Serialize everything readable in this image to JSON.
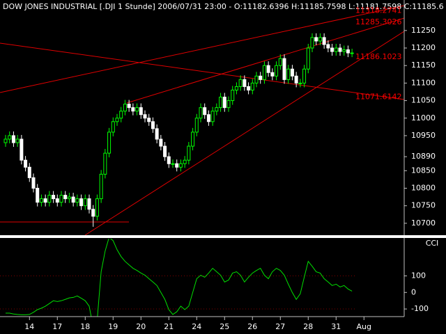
{
  "chart_data": [
    {
      "type": "candlestick",
      "title": "DOW JONES INDUSTRIAL [.DJI  1 Stunde] 2006/07/31 23:00 - O:11182.6396 H:11185.7598 L:11181.7598 C:11185.6",
      "up_color": "#00ff00",
      "down_color": "#ffffff",
      "open": [
        10930,
        10940,
        10950,
        10930,
        10940,
        10880,
        10860,
        10830,
        10800,
        10760,
        10770,
        10760,
        10780,
        10770,
        10760,
        10780,
        10770,
        10775,
        10760,
        10770,
        10750,
        10770,
        10740,
        10720,
        10770,
        10840,
        10900,
        10960,
        10990,
        11000,
        11020,
        11040,
        11030,
        11020,
        11030,
        11010,
        11000,
        10990,
        10970,
        10940,
        10920,
        10890,
        10870,
        10870,
        10860,
        10870,
        10880,
        10920,
        10960,
        11000,
        11030,
        11010,
        10990,
        11020,
        11030,
        11060,
        11030,
        11050,
        11080,
        11090,
        11110,
        11090,
        11080,
        11100,
        11120,
        11110,
        11150,
        11130,
        11120,
        11150,
        11170,
        11110,
        11140,
        11120,
        11100,
        11100,
        11140,
        11200,
        11230,
        11220,
        11230,
        11210,
        11200,
        11190,
        11200,
        11190,
        11195,
        11186,
        null,
        null,
        null
      ],
      "high": [
        10952,
        10962,
        10962,
        10952,
        10952,
        10892,
        10872,
        10842,
        10812,
        10782,
        10782,
        10792,
        10792,
        10782,
        10792,
        10792,
        10787,
        10787,
        10782,
        10782,
        10782,
        10782,
        10752,
        10782,
        10852,
        10912,
        10972,
        11002,
        11012,
        11032,
        11052,
        11052,
        11042,
        11042,
        11042,
        11022,
        11012,
        11002,
        10982,
        10952,
        10932,
        10902,
        10882,
        10882,
        10882,
        10892,
        10932,
        10972,
        11012,
        11042,
        11042,
        11022,
        11032,
        11042,
        11072,
        11072,
        11062,
        11092,
        11102,
        11122,
        11122,
        11102,
        11112,
        11132,
        11132,
        11162,
        11162,
        11142,
        11162,
        11182,
        11182,
        11152,
        11152,
        11132,
        11112,
        11152,
        11212,
        11242,
        11242,
        11242,
        11242,
        11222,
        11212,
        11212,
        11212,
        11207,
        11207,
        11198,
        null,
        null,
        null
      ],
      "low": [
        10918,
        10928,
        10918,
        10918,
        10868,
        10848,
        10818,
        10788,
        10748,
        10748,
        10748,
        10748,
        10758,
        10748,
        10748,
        10758,
        10758,
        10748,
        10748,
        10738,
        10738,
        10728,
        10690,
        10708,
        10758,
        10828,
        10888,
        10948,
        10978,
        10988,
        11008,
        11018,
        11008,
        11008,
        10998,
        10988,
        10978,
        10958,
        10928,
        10908,
        10878,
        10858,
        10858,
        10848,
        10848,
        10858,
        10868,
        10908,
        10948,
        10988,
        10998,
        10978,
        10978,
        11008,
        11018,
        11018,
        11018,
        11038,
        11068,
        11078,
        11078,
        11068,
        11068,
        11088,
        11098,
        11098,
        11118,
        11108,
        11108,
        11138,
        11098,
        11098,
        11108,
        11088,
        11088,
        11088,
        11128,
        11188,
        11208,
        11208,
        11198,
        11188,
        11178,
        11178,
        11178,
        11178,
        11174,
        11174,
        null,
        null,
        null
      ],
      "close": [
        10940,
        10950,
        10930,
        10940,
        10880,
        10860,
        10830,
        10800,
        10760,
        10770,
        10760,
        10780,
        10770,
        10760,
        10780,
        10770,
        10775,
        10760,
        10770,
        10750,
        10770,
        10740,
        10720,
        10770,
        10840,
        10900,
        10960,
        10990,
        11000,
        11020,
        11040,
        11030,
        11020,
        11030,
        11010,
        11000,
        10990,
        10970,
        10940,
        10920,
        10890,
        10870,
        10870,
        10860,
        10870,
        10880,
        10920,
        10960,
        11000,
        11030,
        11010,
        10990,
        11020,
        11030,
        11060,
        11030,
        11050,
        11080,
        11090,
        11110,
        11090,
        11080,
        11100,
        11120,
        11110,
        11150,
        11130,
        11120,
        11150,
        11170,
        11110,
        11140,
        11120,
        11100,
        11100,
        11140,
        11200,
        11230,
        11220,
        11230,
        11210,
        11200,
        11190,
        11200,
        11190,
        11195,
        11186,
        11186,
        null,
        null,
        null
      ],
      "ylim": [
        10666,
        11337
      ],
      "yticks": [
        10700,
        10750,
        10800,
        10850,
        10890,
        10950,
        11000,
        11050,
        11100,
        11150,
        11200,
        11250
      ],
      "price_labels": [
        11318.2741,
        11285.3026,
        11186.1023,
        11071.6142
      ],
      "price_label_color": "#ff0000"
    },
    {
      "type": "line",
      "title": "CCI",
      "color": "#00e000",
      "categories": [
        null,
        null,
        null,
        null,
        null,
        null,
        "14",
        null,
        null,
        null,
        null,
        null,
        null,
        "17",
        null,
        null,
        null,
        null,
        null,
        null,
        "18",
        null,
        null,
        null,
        null,
        null,
        null,
        "19",
        null,
        null,
        null,
        null,
        null,
        null,
        "20",
        null,
        null,
        null,
        null,
        null,
        null,
        "21",
        null,
        null,
        null,
        null,
        null,
        null,
        "24",
        null,
        null,
        null,
        null,
        null,
        null,
        "25",
        null,
        null,
        null,
        null,
        null,
        null,
        "26",
        null,
        null,
        null,
        null,
        null,
        null,
        "27",
        null,
        null,
        null,
        null,
        null,
        null,
        "28",
        null,
        null,
        null,
        null,
        null,
        null,
        "31",
        null,
        null,
        null,
        null,
        null,
        null,
        "Aug"
      ],
      "values": [
        -125,
        -125,
        -130,
        -133,
        -135,
        -135,
        -133,
        -120,
        -104,
        -95,
        -83,
        -67,
        -50,
        -55,
        -50,
        -42,
        -33,
        -30,
        -21,
        -35,
        -50,
        -83,
        -208,
        -167,
        125,
        250,
        333,
        313,
        258,
        217,
        188,
        167,
        146,
        133,
        117,
        104,
        83,
        63,
        42,
        0,
        -42,
        -104,
        -133,
        -117,
        -83,
        -104,
        -83,
        0,
        83,
        104,
        92,
        117,
        146,
        125,
        104,
        63,
        75,
        117,
        125,
        104,
        63,
        92,
        117,
        133,
        146,
        104,
        83,
        125,
        146,
        133,
        104,
        50,
        0,
        -42,
        -8,
        92,
        188,
        158,
        125,
        117,
        83,
        63,
        42,
        50,
        33,
        42,
        21,
        8,
        null,
        null,
        null
      ],
      "ylim": [
        -146,
        325
      ],
      "yticks": [
        -100,
        0,
        100
      ],
      "grid": true,
      "grid_color": "#800000"
    }
  ]
}
